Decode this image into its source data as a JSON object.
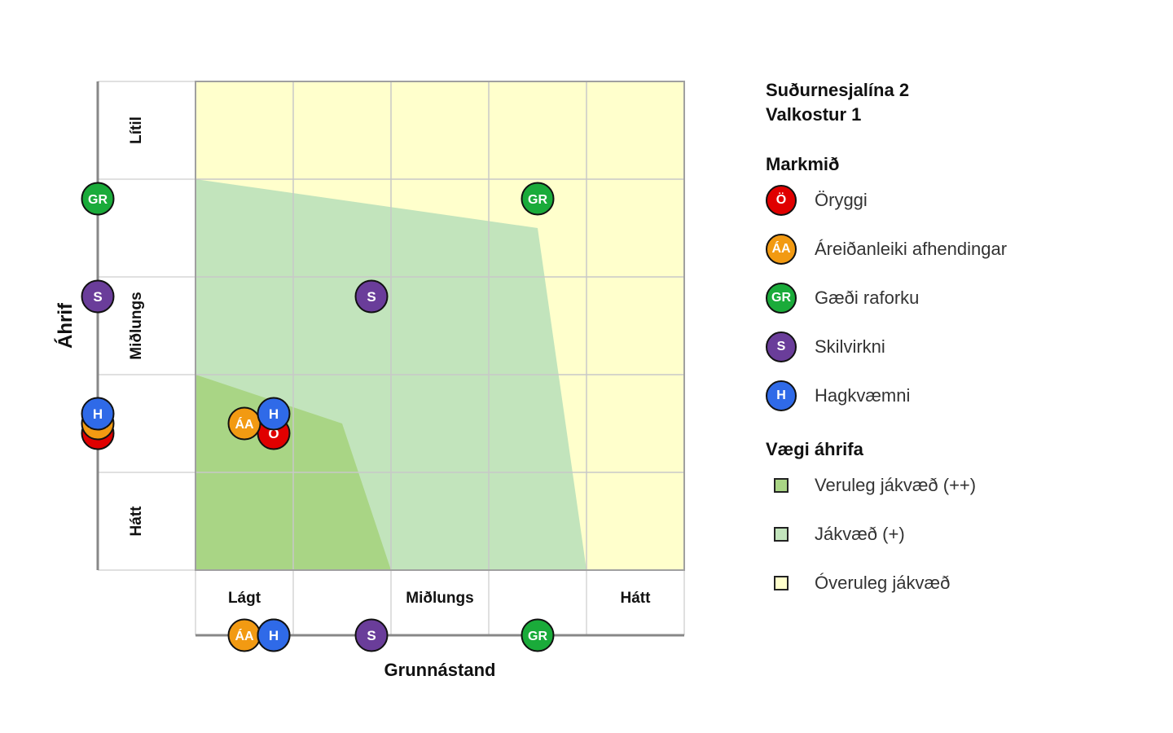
{
  "chart_data": {
    "type": "scatter",
    "xlabel": "Grunnástand",
    "ylabel": "Áhrif",
    "x_categories": [
      "Lágt",
      "",
      "Miðlungs",
      "",
      "Hátt"
    ],
    "y_categories": [
      "Lítil",
      "",
      "Miðlungs",
      "",
      "Hátt"
    ],
    "xlim": [
      0,
      5
    ],
    "ylim": [
      0,
      5
    ],
    "grid": true,
    "regions": [
      {
        "name": "Óveruleg jákvæð",
        "color": "#FFFFCC",
        "points": [
          [
            0,
            0
          ],
          [
            5,
            0
          ],
          [
            5,
            5
          ],
          [
            0,
            5
          ]
        ]
      },
      {
        "name": "Jákvæð (+)",
        "color": "#C2E4BC",
        "points": [
          [
            0,
            1
          ],
          [
            3.5,
            1.5
          ],
          [
            4,
            5
          ],
          [
            0,
            5
          ]
        ]
      },
      {
        "name": "Veruleg jákvæð (++)",
        "color": "#A9D585",
        "points": [
          [
            0,
            3
          ],
          [
            1.5,
            3.5
          ],
          [
            2,
            5
          ],
          [
            0,
            5
          ]
        ]
      }
    ],
    "points": [
      {
        "code": "GR",
        "x": 3.5,
        "y": 1.2
      },
      {
        "code": "S",
        "x": 1.8,
        "y": 2.2
      },
      {
        "code": "Ö",
        "x": 0.8,
        "y": 3.6
      },
      {
        "code": "ÁA",
        "x": 0.5,
        "y": 3.5
      },
      {
        "code": "H",
        "x": 0.8,
        "y": 3.4
      }
    ]
  },
  "legend": {
    "title_line1": "Suðurnesjalína 2",
    "title_line2": "Valkostur 1",
    "goals_heading": "Markmið",
    "goals": [
      {
        "code": "Ö",
        "label": "Öryggi",
        "color": "#E00000"
      },
      {
        "code": "ÁA",
        "label": "Áreiðanleiki afhendingar",
        "color": "#F29A12"
      },
      {
        "code": "GR",
        "label": "Gæði raforku",
        "color": "#1AAB3A"
      },
      {
        "code": "S",
        "label": "Skilvirkni",
        "color": "#6A3D9A"
      },
      {
        "code": "H",
        "label": "Hagkvæmni",
        "color": "#2F6AE8"
      }
    ],
    "weights_heading": "Vægi áhrifa",
    "weights": [
      {
        "label": "Veruleg jákvæð (++)",
        "color": "#A9D585"
      },
      {
        "label": "Jákvæð (+)",
        "color": "#C2E4BC"
      },
      {
        "label": "Óveruleg jákvæð",
        "color": "#FFFFCC"
      }
    ]
  }
}
